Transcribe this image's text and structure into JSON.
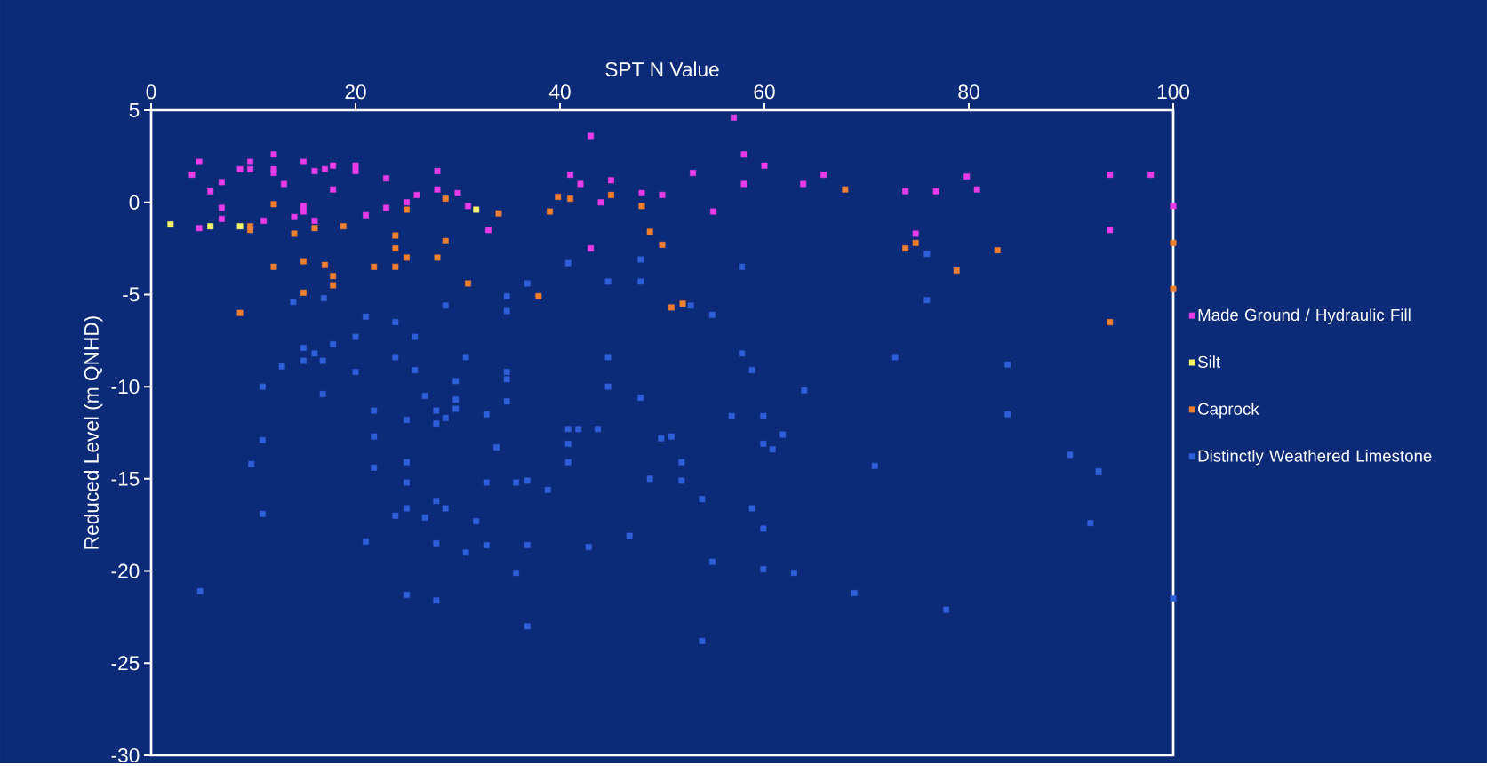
{
  "chart_data": {
    "type": "scatter",
    "xlabel": "SPT N Value",
    "ylabel": "Reduced Level (m QNHD)",
    "xlim": [
      0,
      100
    ],
    "ylim": [
      -30,
      5
    ],
    "xticks": [
      0,
      20,
      40,
      60,
      80,
      100
    ],
    "yticks": [
      -30,
      -25,
      -20,
      -15,
      -10,
      -5,
      0,
      5
    ],
    "legend": "right",
    "marker": "square",
    "series": [
      {
        "name": "Made Ground / Hydraulic Fill",
        "color": "#e83ce8",
        "x": [
          4,
          4.7,
          5.8,
          6.9,
          6.9,
          6.9,
          4.7,
          8.7,
          9.7,
          9.7,
          12,
          12,
          12,
          13,
          11,
          14,
          14.9,
          14.9,
          14.9,
          16,
          17,
          17.8,
          17.8,
          16,
          20,
          20,
          21,
          23,
          23,
          25,
          26,
          28,
          28,
          30,
          31,
          33,
          41,
          42,
          43,
          43,
          44,
          45,
          48,
          50,
          53,
          55,
          57,
          58,
          58,
          60,
          63.8,
          65.8,
          73.8,
          74.8,
          76.8,
          79.8,
          80.8,
          93.8,
          93.8,
          97.8,
          100
        ],
        "values": [
          1.5,
          2.2,
          0.6,
          1.1,
          -0.3,
          -0.9,
          -1.4,
          1.8,
          2.2,
          1.8,
          2.6,
          1.8,
          1.6,
          1,
          -1,
          -0.8,
          2.2,
          -0.2,
          -0.5,
          1.7,
          1.8,
          2,
          0.7,
          -1,
          2,
          1.7,
          -0.7,
          1.3,
          -0.3,
          0,
          0.4,
          1.7,
          0.7,
          0.5,
          -0.2,
          -1.5,
          1.5,
          1,
          3.6,
          -2.5,
          0,
          1.2,
          0.5,
          0.4,
          1.6,
          -0.5,
          4.6,
          2.6,
          1,
          2,
          1,
          1.5,
          0.6,
          -1.7,
          0.6,
          1.4,
          0.7,
          1.5,
          -1.5,
          1.5,
          -0.2
        ]
      },
      {
        "name": "Silt",
        "color": "#f4f46a",
        "x": [
          1.9,
          5.8,
          8.7,
          31.8
        ],
        "values": [
          -1.2,
          -1.3,
          -1.3,
          -0.4
        ]
      },
      {
        "name": "Caprock",
        "color": "#f07f30",
        "x": [
          9.7,
          9.7,
          12,
          12,
          14,
          14.9,
          14.9,
          16,
          17,
          17.8,
          17.8,
          18.8,
          21.8,
          23.9,
          23.9,
          23.9,
          25,
          25,
          28,
          28.8,
          28.8,
          31,
          34,
          37.9,
          39,
          39.8,
          41,
          45,
          48,
          48.8,
          50,
          50.9,
          52,
          67.9,
          73.8,
          74.8,
          78.8,
          82.8,
          93.8,
          100,
          100,
          8.7
        ],
        "values": [
          -1.3,
          -1.5,
          -0.1,
          -3.5,
          -1.7,
          -3.2,
          -4.9,
          -1.4,
          -3.4,
          -4,
          -4.5,
          -1.3,
          -3.5,
          -1.8,
          -2.5,
          -3.5,
          -0.4,
          -3,
          -3,
          0.2,
          -2.1,
          -4.4,
          -0.6,
          -5.1,
          -0.5,
          0.3,
          0.2,
          0.4,
          -0.2,
          -1.6,
          -2.3,
          -5.7,
          -5.5,
          0.7,
          -2.5,
          -2.2,
          -3.7,
          -2.6,
          -6.5,
          -2.2,
          -4.7,
          -6
        ]
      },
      {
        "name": "Distinctly Weathered Limestone",
        "color": "#2f5fd8",
        "x": [
          4.8,
          9.8,
          10.9,
          10.9,
          10.9,
          12.8,
          13.9,
          14.9,
          14.9,
          16,
          16.8,
          16.8,
          16.9,
          17.8,
          20,
          20,
          21,
          21,
          21.8,
          21.8,
          21.8,
          23.9,
          23.9,
          23.9,
          25,
          25,
          25,
          25,
          25,
          25.8,
          25.8,
          26.8,
          26.8,
          27.9,
          27.9,
          27.9,
          27.9,
          27.9,
          28.8,
          28.8,
          28.8,
          29.8,
          29.8,
          29.8,
          30.8,
          30.8,
          31.8,
          32.8,
          32.8,
          32.8,
          33.8,
          34.8,
          34.8,
          34.8,
          34.8,
          34.8,
          35.7,
          35.7,
          36.8,
          36.8,
          36.8,
          36.8,
          38.8,
          40.8,
          40.8,
          40.8,
          40.8,
          41.8,
          42.8,
          43.7,
          44.7,
          44.7,
          44.7,
          46.8,
          47.9,
          47.9,
          47.9,
          48.8,
          49.9,
          50.9,
          51.9,
          51.9,
          52.8,
          53.9,
          53.9,
          54.9,
          54.9,
          56.8,
          57.8,
          57.8,
          58.8,
          58.8,
          59.9,
          59.9,
          59.9,
          59.9,
          60.8,
          61.8,
          62.9,
          63.9,
          68.8,
          70.8,
          72.8,
          75.9,
          75.9,
          77.8,
          83.8,
          83.8,
          89.9,
          91.9,
          92.7,
          100
        ],
        "values": [
          -21.1,
          -14.2,
          -10,
          -12.9,
          -16.9,
          -8.9,
          -5.4,
          -8.6,
          -7.9,
          -8.2,
          -8.6,
          -10.4,
          -5.2,
          -7.7,
          -7.3,
          -9.2,
          -6.2,
          -18.4,
          -11.3,
          -12.7,
          -14.4,
          -8.4,
          -6.5,
          -17,
          -11.8,
          -14.1,
          -15.2,
          -16.6,
          -21.3,
          -7.3,
          -9.1,
          -10.5,
          -17.1,
          -11.3,
          -12,
          -16.2,
          -18.5,
          -21.6,
          -5.6,
          -11.7,
          -16.6,
          -9.7,
          -10.7,
          -11.2,
          -8.4,
          -19,
          -17.3,
          -11.5,
          -15.2,
          -18.6,
          -13.3,
          -5.1,
          -5.9,
          -9.2,
          -9.6,
          -10.8,
          -20.1,
          -15.2,
          -15.1,
          -4.4,
          -18.6,
          -23,
          -15.6,
          -3.3,
          -12.3,
          -13.1,
          -14.1,
          -12.3,
          -18.7,
          -12.3,
          -4.3,
          -8.4,
          -10,
          -18.1,
          -4.3,
          -3.1,
          -10.6,
          -15,
          -12.8,
          -12.7,
          -14.1,
          -15.1,
          -5.6,
          -16.1,
          -23.8,
          -6.1,
          -19.5,
          -11.6,
          -3.5,
          -8.2,
          -9.1,
          -16.6,
          -11.6,
          -13.1,
          -17.7,
          -19.9,
          -13.4,
          -12.6,
          -20.1,
          -10.2,
          -21.2,
          -14.3,
          -8.4,
          -2.8,
          -5.3,
          -22.1,
          -8.8,
          -11.5,
          -13.7,
          -17.4,
          -14.6,
          -21.5
        ]
      }
    ]
  }
}
